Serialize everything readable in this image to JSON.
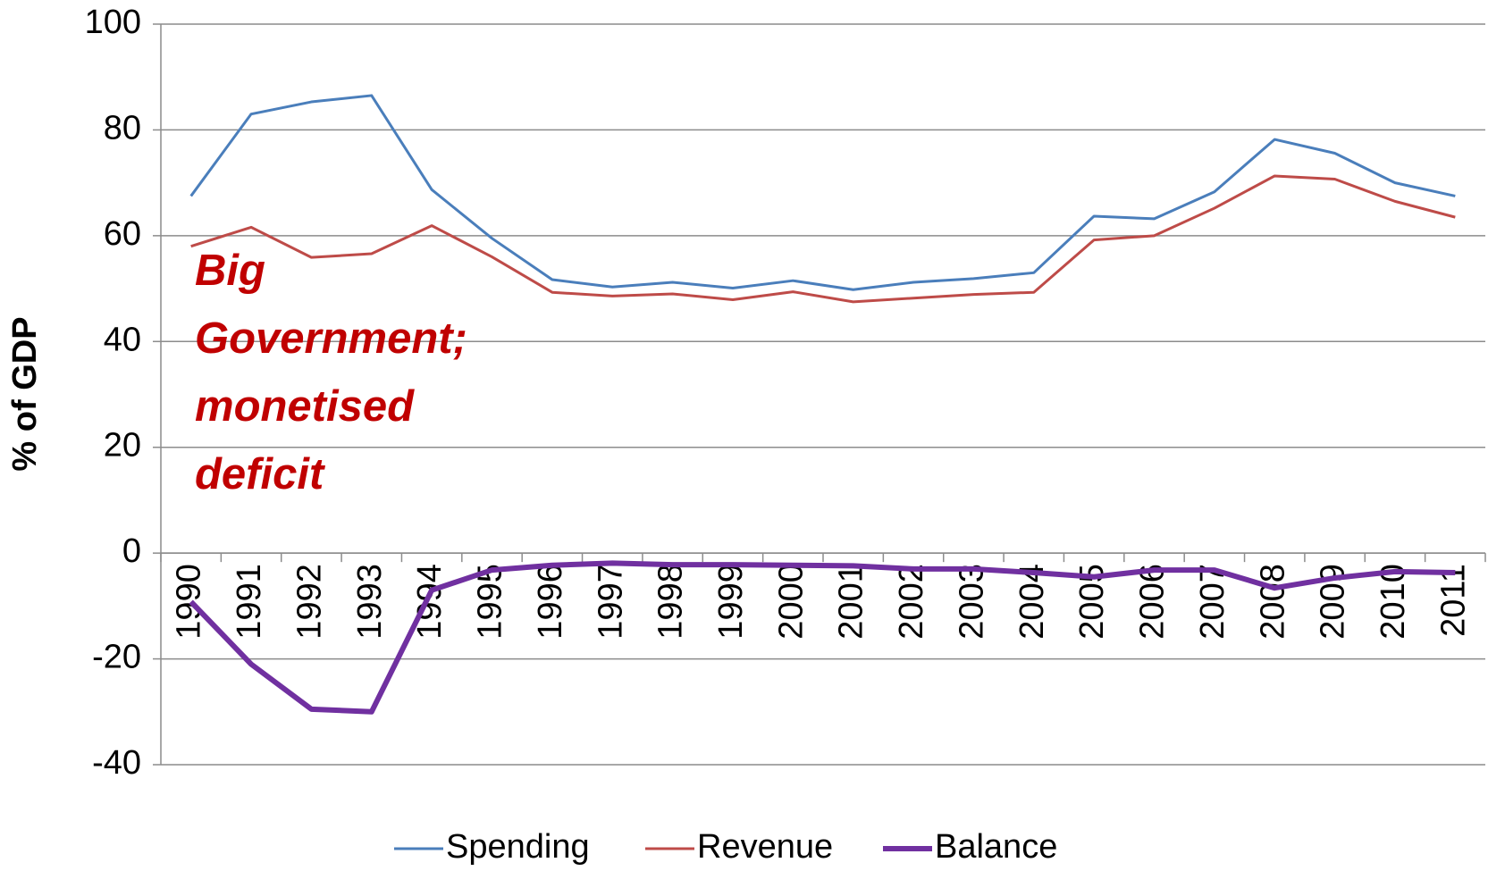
{
  "chart_data": {
    "type": "line",
    "ylabel": "% of GDP",
    "annotation": "Big Government; monetised deficit",
    "categories": [
      "1990",
      "1991",
      "1992",
      "1993",
      "1994",
      "1995",
      "1996",
      "1997",
      "1998",
      "1999",
      "2000",
      "2001",
      "2002",
      "2003",
      "2004",
      "2005",
      "2006",
      "2007",
      "2008",
      "2009",
      "2010",
      "2011"
    ],
    "series": [
      {
        "name": "Spending",
        "color": "#4a7ebb",
        "width": 3,
        "values": [
          67.5,
          83,
          85.3,
          86.5,
          68.7,
          59.5,
          51.7,
          50.3,
          51.2,
          50.1,
          51.5,
          49.8,
          51.2,
          51.9,
          53,
          63.7,
          63.2,
          68.3,
          78.2,
          75.6,
          70,
          67.5
        ]
      },
      {
        "name": "Revenue",
        "color": "#be4b48",
        "width": 3,
        "values": [
          58,
          61.6,
          55.9,
          56.6,
          61.9,
          56,
          49.3,
          48.6,
          49,
          47.9,
          49.4,
          47.5,
          48.2,
          48.9,
          49.3,
          59.2,
          60,
          65.2,
          71.3,
          70.7,
          66.5,
          63.5
        ]
      },
      {
        "name": "Balance",
        "color": "#7030a0",
        "width": 6,
        "values": [
          -9.2,
          -21,
          -29.5,
          -30,
          -7,
          -3.2,
          -2.3,
          -1.9,
          -2.2,
          -2.2,
          -2.3,
          -2.4,
          -3,
          -3,
          -3.7,
          -4.5,
          -3.2,
          -3.2,
          -6.6,
          -4.7,
          -3.5,
          -3.7
        ]
      }
    ],
    "ylim": [
      -40,
      100
    ],
    "yticks": [
      -40,
      -20,
      0,
      20,
      40,
      60,
      80,
      100
    ],
    "grid": true,
    "legend": "bottom"
  }
}
